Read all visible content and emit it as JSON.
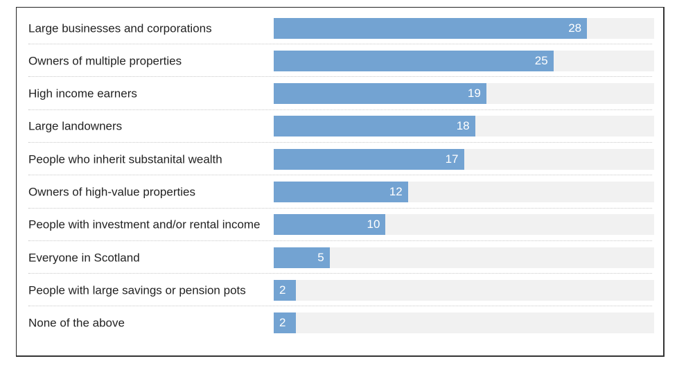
{
  "chart_data": {
    "type": "bar",
    "orientation": "horizontal",
    "title": "",
    "xlabel": "",
    "ylabel": "",
    "xlim": [
      0,
      34
    ],
    "grid": false,
    "categories": [
      "Large businesses and corporations",
      "Owners of multiple properties",
      "High income earners",
      "Large landowners",
      "People who inherit substanital wealth",
      "Owners of high-value properties",
      "People with investment and/or rental income",
      "Everyone in Scotland",
      "People with large savings or pension pots",
      "None of the above"
    ],
    "values": [
      28,
      25,
      19,
      18,
      17,
      12,
      10,
      5,
      2,
      2
    ],
    "colors": {
      "bar": "#73a3d2",
      "track": "#f1f1f1",
      "value_text": "#ffffff"
    }
  }
}
